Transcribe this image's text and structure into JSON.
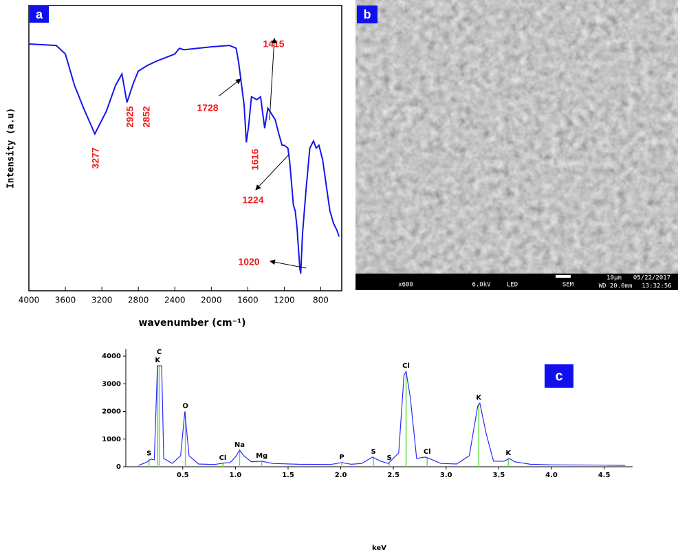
{
  "chart_data": [
    {
      "type": "line",
      "label": "a",
      "xlabel": "wavenumber (cm⁻¹)",
      "ylabel": "Intensity (a.u)",
      "color": "#1515ee",
      "xlim": [
        4000,
        570
      ],
      "ylim": [
        0,
        100
      ],
      "xticks": [
        4000,
        3600,
        3200,
        2800,
        2400,
        2000,
        1600,
        1200,
        800
      ],
      "x": [
        4000,
        3700,
        3600,
        3500,
        3400,
        3277,
        3150,
        3050,
        2980,
        2925,
        2852,
        2800,
        2700,
        2600,
        2400,
        2350,
        2300,
        2000,
        1800,
        1728,
        1700,
        1680,
        1640,
        1616,
        1590,
        1560,
        1500,
        1460,
        1415,
        1380,
        1340,
        1300,
        1260,
        1224,
        1200,
        1160,
        1140,
        1100,
        1080,
        1060,
        1030,
        1020,
        1000,
        960,
        920,
        880,
        850,
        820,
        780,
        740,
        700,
        660,
        620,
        600
      ],
      "values": [
        86.5,
        86,
        83,
        72,
        64,
        55,
        63,
        72,
        76,
        66,
        73,
        77,
        79,
        80.5,
        83,
        85,
        84.5,
        85.5,
        86,
        85,
        80,
        75,
        65,
        52,
        58,
        68,
        67,
        68,
        57,
        64,
        62,
        60,
        55,
        51,
        51,
        50,
        45,
        30,
        28,
        22,
        8,
        6,
        20,
        36,
        50,
        52.5,
        50,
        51,
        46,
        37,
        28,
        23.6,
        21,
        19
      ],
      "annotations": [
        "3277",
        "2925",
        "2852",
        "1728",
        "1415",
        "1616",
        "1224",
        "1020"
      ]
    },
    {
      "type": "image",
      "label": "b",
      "footer": [
        "x600",
        "6.0kV",
        "LED",
        "SEM",
        "10μm",
        "05/22/2017",
        "WD 20.0mm",
        "13:32:56"
      ]
    },
    {
      "type": "line",
      "label": "c",
      "xlabel": "keV",
      "color": "#2a2aff",
      "marker_color": "#66dd44",
      "xlim": [
        -0.04,
        4.77
      ],
      "ylim": [
        0,
        4250
      ],
      "xticks": [
        0.5,
        {
          "value": 1,
          "label": "1.0"
        },
        1.5,
        {
          "value": 2,
          "label": "2.0"
        },
        2.5,
        {
          "value": 3,
          "label": "3.0"
        },
        3.5,
        {
          "value": 4,
          "label": "4.0"
        },
        4.5
      ],
      "yticks": [
        0,
        1000,
        2000,
        3000,
        4000
      ],
      "x": [
        0.08,
        0.15,
        0.2,
        0.23,
        0.26,
        0.3,
        0.32,
        0.4,
        0.48,
        0.52,
        0.56,
        0.65,
        0.8,
        0.88,
        0.95,
        1.0,
        1.04,
        1.08,
        1.15,
        1.25,
        1.35,
        1.6,
        1.9,
        2.01,
        2.1,
        2.2,
        2.3,
        2.38,
        2.45,
        2.55,
        2.6,
        2.62,
        2.66,
        2.72,
        2.8,
        2.84,
        2.95,
        3.1,
        3.22,
        3.3,
        3.32,
        3.38,
        3.45,
        3.55,
        3.6,
        3.65,
        3.8,
        4.0,
        4.5,
        4.7
      ],
      "values": [
        50,
        150,
        280,
        250,
        3650,
        3650,
        300,
        120,
        400,
        2000,
        400,
        100,
        80,
        130,
        150,
        350,
        600,
        400,
        180,
        200,
        120,
        90,
        80,
        150,
        90,
        120,
        350,
        200,
        120,
        500,
        3300,
        3450,
        2500,
        300,
        350,
        300,
        120,
        100,
        400,
        2200,
        2300,
        1200,
        200,
        200,
        300,
        180,
        90,
        70,
        60,
        50
      ],
      "peaks": [
        {
          "label": "S",
          "x": 0.18,
          "y": 280
        },
        {
          "label": "C",
          "x": 0.277,
          "y": 3650
        },
        {
          "label": "K",
          "x": 0.262,
          "y": 3650
        },
        {
          "label": "O",
          "x": 0.525,
          "y": 2000
        },
        {
          "label": "Cl",
          "x": 0.88,
          "y": 130
        },
        {
          "label": "Na",
          "x": 1.04,
          "y": 600
        },
        {
          "label": "Mg",
          "x": 1.25,
          "y": 200
        },
        {
          "label": "P",
          "x": 2.01,
          "y": 150
        },
        {
          "label": "S",
          "x": 2.31,
          "y": 350
        },
        {
          "label": "S",
          "x": 2.46,
          "y": 120
        },
        {
          "label": "Cl",
          "x": 2.62,
          "y": 3450
        },
        {
          "label": "Cl",
          "x": 2.82,
          "y": 350
        },
        {
          "label": "K",
          "x": 3.31,
          "y": 2300
        },
        {
          "label": "K",
          "x": 3.59,
          "y": 300
        }
      ]
    }
  ]
}
